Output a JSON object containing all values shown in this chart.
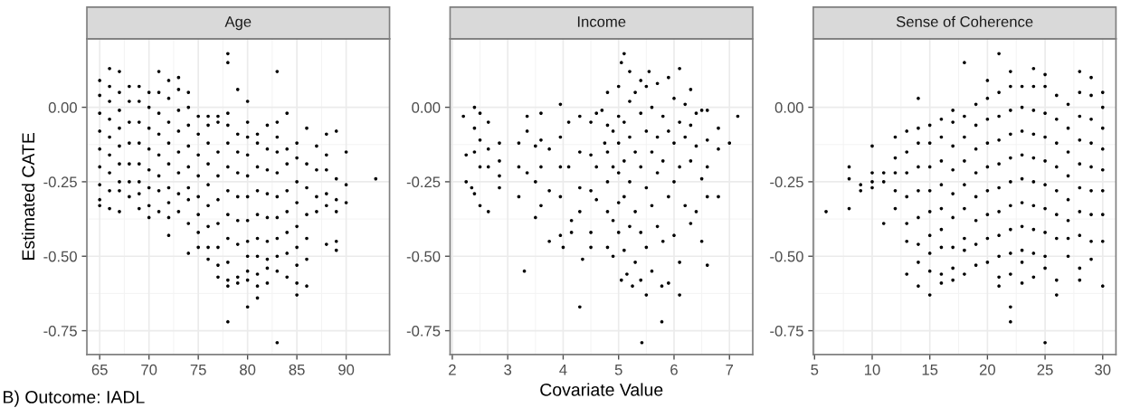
{
  "chart_data": [
    {
      "type": "scatter",
      "title": "Age",
      "ylabel": "Estimated CATE",
      "annotations": [
        "B) Outcome: IADL"
      ],
      "color": "#000000",
      "marker": "circle",
      "grid": true,
      "xlim": [
        63.7,
        94.4
      ],
      "xticks": [
        65,
        70,
        75,
        80,
        85,
        90
      ],
      "ylim": [
        -0.83,
        0.23
      ],
      "yticks": [
        {
          "value": 0,
          "label": "0.00"
        },
        {
          "value": -0.25,
          "label": "-0.25"
        },
        {
          "value": -0.5,
          "label": "-0.50"
        },
        {
          "value": -0.75,
          "label": "-0.75"
        }
      ],
      "x": [
        65,
        65,
        65,
        65,
        65,
        65,
        65,
        65,
        65,
        66,
        66,
        66,
        66,
        66,
        66,
        66,
        66,
        66,
        67,
        67,
        67,
        67,
        67,
        67,
        67,
        67,
        67,
        68,
        68,
        68,
        68,
        68,
        68,
        68,
        69,
        69,
        69,
        69,
        69,
        69,
        69,
        69,
        70,
        70,
        70,
        70,
        70,
        70,
        70,
        70,
        71,
        71,
        71,
        71,
        71,
        71,
        71,
        71,
        72,
        72,
        72,
        72,
        72,
        72,
        72,
        72,
        72,
        73,
        73,
        73,
        73,
        73,
        73,
        73,
        73,
        74,
        74,
        74,
        74,
        74,
        74,
        74,
        74,
        74,
        75,
        75,
        75,
        75,
        75,
        75,
        75,
        75,
        76,
        76,
        76,
        76,
        76,
        76,
        76,
        76,
        76,
        77,
        77,
        77,
        77,
        77,
        77,
        77,
        77,
        77,
        78,
        78,
        78,
        78,
        78,
        78,
        78,
        78,
        78,
        78,
        78,
        78,
        78,
        79,
        79,
        79,
        79,
        79,
        79,
        79,
        79,
        79,
        80,
        80,
        80,
        80,
        80,
        80,
        80,
        80,
        80,
        80,
        80,
        80,
        81,
        81,
        81,
        81,
        81,
        81,
        81,
        81,
        81,
        81,
        82,
        82,
        82,
        82,
        82,
        82,
        82,
        82,
        82,
        83,
        83,
        83,
        83,
        83,
        83,
        83,
        83,
        83,
        83,
        83,
        84,
        84,
        84,
        84,
        84,
        84,
        84,
        84,
        85,
        85,
        85,
        85,
        85,
        85,
        85,
        85,
        85,
        86,
        86,
        86,
        86,
        86,
        86,
        86,
        87,
        87,
        87,
        87,
        88,
        88,
        88,
        88,
        88,
        88,
        89,
        89,
        89,
        89,
        89,
        89,
        90,
        90,
        90,
        93
      ],
      "values": [
        0.09,
        0.04,
        -0.02,
        -0.08,
        -0.14,
        -0.2,
        -0.26,
        -0.31,
        -0.33,
        0.13,
        0.07,
        0.02,
        -0.04,
        -0.1,
        -0.16,
        -0.22,
        -0.28,
        -0.34,
        0.12,
        0.05,
        -0.01,
        -0.07,
        -0.13,
        -0.19,
        -0.25,
        -0.28,
        -0.35,
        0.07,
        0.02,
        -0.05,
        -0.12,
        -0.19,
        -0.25,
        -0.3,
        0.07,
        0.02,
        -0.05,
        -0.12,
        -0.19,
        -0.25,
        -0.29,
        -0.34,
        0.05,
        0.0,
        -0.07,
        -0.14,
        -0.21,
        -0.27,
        -0.33,
        -0.37,
        0.12,
        0.05,
        -0.02,
        -0.09,
        -0.16,
        -0.23,
        -0.28,
        -0.35,
        0.09,
        0.03,
        -0.05,
        -0.12,
        -0.19,
        -0.27,
        -0.32,
        -0.37,
        -0.43,
        0.1,
        0.06,
        -0.01,
        -0.08,
        -0.15,
        -0.22,
        -0.29,
        -0.35,
        0.05,
        0.0,
        -0.06,
        -0.13,
        -0.2,
        -0.27,
        -0.31,
        -0.39,
        -0.49,
        -0.03,
        -0.09,
        -0.16,
        -0.23,
        -0.3,
        -0.36,
        -0.42,
        -0.47,
        -0.03,
        -0.06,
        -0.12,
        -0.19,
        -0.26,
        -0.33,
        -0.4,
        -0.47,
        -0.51,
        -0.03,
        -0.05,
        -0.15,
        -0.23,
        -0.31,
        -0.39,
        -0.47,
        -0.53,
        -0.57,
        0.18,
        0.15,
        -0.02,
        -0.06,
        -0.12,
        -0.2,
        -0.28,
        -0.36,
        -0.44,
        -0.52,
        -0.58,
        -0.6,
        -0.72,
        0.06,
        -0.09,
        -0.15,
        -0.22,
        -0.3,
        -0.38,
        -0.46,
        -0.57,
        -0.59,
        0.02,
        -0.05,
        -0.1,
        -0.16,
        -0.23,
        -0.3,
        -0.38,
        -0.45,
        -0.5,
        -0.55,
        -0.58,
        -0.67,
        -0.09,
        -0.12,
        -0.2,
        -0.28,
        -0.36,
        -0.44,
        -0.5,
        -0.56,
        -0.6,
        -0.64,
        -0.06,
        -0.14,
        -0.21,
        -0.29,
        -0.37,
        -0.45,
        -0.51,
        -0.54,
        -0.59,
        0.12,
        -0.05,
        -0.1,
        -0.15,
        -0.22,
        -0.3,
        -0.37,
        -0.44,
        -0.5,
        -0.55,
        -0.79,
        -0.02,
        -0.14,
        -0.19,
        -0.28,
        -0.35,
        -0.42,
        -0.49,
        -0.57,
        -0.12,
        -0.17,
        -0.25,
        -0.32,
        -0.4,
        -0.47,
        -0.53,
        -0.59,
        -0.63,
        -0.07,
        -0.19,
        -0.27,
        -0.36,
        -0.44,
        -0.51,
        -0.6,
        -0.13,
        -0.21,
        -0.3,
        -0.35,
        -0.09,
        -0.16,
        -0.21,
        -0.29,
        -0.33,
        -0.46,
        -0.08,
        -0.24,
        -0.31,
        -0.35,
        -0.45,
        -0.48,
        -0.15,
        -0.26,
        -0.32,
        -0.24
      ]
    },
    {
      "type": "scatter",
      "title": "Income",
      "xlabel": "Covariate Value",
      "color": "#000000",
      "marker": "circle",
      "grid": true,
      "xlim": [
        1.96,
        7.42
      ],
      "xticks": [
        2,
        3,
        4,
        5,
        6,
        7
      ],
      "ylim": [
        -0.83,
        0.23
      ],
      "yticks": [
        {
          "value": 0,
          "label": "0.00"
        },
        {
          "value": -0.25,
          "label": "-0.25"
        },
        {
          "value": -0.5,
          "label": "-0.50"
        },
        {
          "value": -0.75,
          "label": "-0.75"
        }
      ],
      "x": [
        2.2,
        2.25,
        2.25,
        2.35,
        2.4,
        2.4,
        2.4,
        2.4,
        2.5,
        2.5,
        2.5,
        2.5,
        2.65,
        2.65,
        2.65,
        2.65,
        2.85,
        2.85,
        2.85,
        2.85,
        3.2,
        3.2,
        3.2,
        3.3,
        3.35,
        3.35,
        3.35,
        3.5,
        3.5,
        3.5,
        3.6,
        3.6,
        3.6,
        3.6,
        3.75,
        3.75,
        3.75,
        3.95,
        3.95,
        3.95,
        3.95,
        3.95,
        4.0,
        4.1,
        4.1,
        4.15,
        4.15,
        4.3,
        4.3,
        4.3,
        4.3,
        4.3,
        4.35,
        4.5,
        4.5,
        4.5,
        4.5,
        4.5,
        4.6,
        4.6,
        4.6,
        4.7,
        4.75,
        4.8,
        4.8,
        4.8,
        4.8,
        4.8,
        4.8,
        4.9,
        4.9,
        4.9,
        4.9,
        5.0,
        5.0,
        5.0,
        5.0,
        5.0,
        5.0,
        5.05,
        5.05,
        5.1,
        5.1,
        5.1,
        5.1,
        5.1,
        5.15,
        5.2,
        5.2,
        5.2,
        5.2,
        5.2,
        5.25,
        5.3,
        5.3,
        5.3,
        5.3,
        5.4,
        5.4,
        5.4,
        5.4,
        5.4,
        5.42,
        5.5,
        5.5,
        5.5,
        5.5,
        5.5,
        5.55,
        5.6,
        5.6,
        5.6,
        5.6,
        5.7,
        5.7,
        5.7,
        5.7,
        5.78,
        5.78,
        5.8,
        5.8,
        5.8,
        5.9,
        5.9,
        5.9,
        5.9,
        6.0,
        6.0,
        6.0,
        6.0,
        6.1,
        6.1,
        6.1,
        6.1,
        6.1,
        6.2,
        6.2,
        6.2,
        6.3,
        6.3,
        6.3,
        6.3,
        6.4,
        6.4,
        6.4,
        6.5,
        6.5,
        6.5,
        6.6,
        6.6,
        6.6,
        6.6,
        6.6,
        6.8,
        6.8,
        6.8,
        7.0,
        7.15
      ],
      "values": [
        -0.03,
        -0.16,
        -0.25,
        -0.27,
        0.0,
        -0.07,
        -0.15,
        -0.29,
        -0.02,
        -0.11,
        -0.2,
        -0.33,
        -0.05,
        -0.14,
        -0.2,
        -0.35,
        -0.12,
        -0.18,
        -0.23,
        -0.27,
        -0.12,
        -0.2,
        -0.3,
        -0.55,
        -0.03,
        -0.08,
        -0.22,
        -0.13,
        -0.25,
        -0.37,
        -0.02,
        -0.11,
        -0.2,
        -0.33,
        -0.14,
        -0.28,
        -0.45,
        0.01,
        -0.1,
        -0.2,
        -0.3,
        -0.43,
        -0.47,
        -0.05,
        -0.2,
        -0.38,
        -0.42,
        -0.03,
        -0.15,
        -0.27,
        -0.35,
        -0.67,
        -0.51,
        -0.05,
        -0.16,
        -0.28,
        -0.42,
        -0.47,
        -0.02,
        -0.2,
        -0.31,
        -0.01,
        -0.12,
        0.05,
        -0.06,
        -0.15,
        -0.25,
        -0.35,
        -0.47,
        -0.08,
        -0.2,
        -0.38,
        -0.5,
        0.07,
        -0.03,
        -0.12,
        -0.22,
        -0.32,
        -0.42,
        0.15,
        -0.58,
        0.18,
        -0.05,
        -0.18,
        -0.3,
        -0.48,
        -0.56,
        0.12,
        0.02,
        -0.1,
        -0.25,
        -0.4,
        -0.6,
        0.05,
        -0.15,
        -0.35,
        -0.52,
        0.09,
        -0.02,
        -0.2,
        -0.42,
        -0.58,
        -0.79,
        0.07,
        -0.08,
        -0.27,
        -0.47,
        -0.63,
        0.12,
        0.0,
        -0.15,
        -0.33,
        -0.55,
        0.08,
        -0.1,
        -0.22,
        -0.4,
        -0.6,
        -0.72,
        -0.03,
        -0.18,
        -0.45,
        0.1,
        -0.08,
        -0.3,
        -0.59,
        0.03,
        -0.12,
        -0.25,
        -0.43,
        0.13,
        -0.05,
        -0.2,
        -0.52,
        -0.63,
        0.01,
        -0.1,
        -0.33,
        0.06,
        -0.06,
        -0.18,
        -0.39,
        -0.02,
        -0.13,
        -0.35,
        -0.01,
        -0.24,
        -0.45,
        -0.01,
        -0.11,
        -0.2,
        -0.3,
        -0.53,
        -0.07,
        -0.14,
        -0.3,
        -0.12,
        -0.03
      ]
    },
    {
      "type": "scatter",
      "title": "Sense of Coherence",
      "color": "#000000",
      "marker": "circle",
      "grid": true,
      "xlim": [
        4.89,
        31.15
      ],
      "xticks": [
        5,
        10,
        15,
        20,
        25,
        30
      ],
      "ylim": [
        -0.83,
        0.23
      ],
      "yticks": [
        {
          "value": 0,
          "label": "0.00"
        },
        {
          "value": -0.25,
          "label": "-0.25"
        },
        {
          "value": -0.5,
          "label": "-0.50"
        },
        {
          "value": -0.75,
          "label": "-0.75"
        }
      ],
      "x": [
        6,
        8,
        8,
        8,
        9,
        9,
        10,
        10,
        10,
        10,
        11,
        11,
        11,
        12,
        12,
        12,
        12,
        12,
        13,
        13,
        13,
        13,
        13,
        13,
        13,
        14,
        14,
        14,
        14,
        14,
        14,
        14,
        14,
        14,
        15,
        15,
        15,
        15,
        15,
        15,
        15,
        15,
        15,
        16,
        16,
        16,
        16,
        16,
        16,
        16,
        16,
        16,
        17,
        17,
        17,
        17,
        17,
        17,
        17,
        17,
        17,
        18,
        18,
        18,
        18,
        18,
        18,
        18,
        18,
        18,
        19,
        19,
        19,
        19,
        19,
        19,
        19,
        19,
        20,
        20,
        20,
        20,
        20,
        20,
        20,
        20,
        20,
        21,
        21,
        21,
        21,
        21,
        21,
        21,
        21,
        21,
        21,
        21,
        22,
        22,
        22,
        22,
        22,
        22,
        22,
        22,
        22,
        22,
        22,
        22,
        23,
        23,
        23,
        23,
        23,
        23,
        23,
        23,
        23,
        23,
        24,
        24,
        24,
        24,
        24,
        24,
        24,
        24,
        24,
        24,
        25,
        25,
        25,
        25,
        25,
        25,
        25,
        25,
        25,
        25,
        25,
        26,
        26,
        26,
        26,
        26,
        26,
        26,
        26,
        26,
        27,
        27,
        27,
        27,
        27,
        27,
        27,
        27,
        28,
        28,
        28,
        28,
        28,
        28,
        28,
        28,
        28,
        28,
        29,
        29,
        29,
        29,
        29,
        29,
        29,
        29,
        29,
        30,
        30,
        30,
        30,
        30,
        30,
        30,
        30,
        30
      ],
      "values": [
        -0.35,
        -0.2,
        -0.24,
        -0.34,
        -0.26,
        -0.28,
        -0.13,
        -0.22,
        -0.25,
        -0.27,
        -0.22,
        -0.25,
        -0.39,
        -0.1,
        -0.17,
        -0.22,
        -0.28,
        -0.34,
        -0.08,
        -0.15,
        -0.22,
        -0.3,
        -0.39,
        -0.45,
        -0.56,
        0.03,
        -0.07,
        -0.12,
        -0.2,
        -0.28,
        -0.37,
        -0.46,
        -0.52,
        -0.6,
        -0.06,
        -0.12,
        -0.2,
        -0.28,
        -0.35,
        -0.43,
        -0.49,
        -0.55,
        -0.63,
        -0.04,
        -0.1,
        -0.18,
        -0.26,
        -0.34,
        -0.41,
        -0.47,
        -0.56,
        -0.59,
        -0.01,
        -0.05,
        -0.13,
        -0.21,
        -0.29,
        -0.37,
        -0.47,
        -0.54,
        -0.58,
        0.15,
        -0.03,
        -0.1,
        -0.18,
        -0.26,
        -0.34,
        -0.44,
        -0.48,
        -0.56,
        0.01,
        -0.06,
        -0.14,
        -0.22,
        -0.3,
        -0.38,
        -0.46,
        -0.53,
        0.09,
        0.03,
        -0.04,
        -0.12,
        -0.2,
        -0.28,
        -0.36,
        -0.44,
        -0.52,
        0.18,
        0.05,
        -0.03,
        -0.11,
        -0.19,
        -0.27,
        -0.35,
        -0.43,
        -0.5,
        -0.57,
        -0.6,
        0.12,
        0.07,
        -0.01,
        -0.09,
        -0.17,
        -0.25,
        -0.33,
        -0.41,
        -0.49,
        -0.56,
        -0.67,
        -0.72,
        0.07,
        0.0,
        -0.08,
        -0.16,
        -0.24,
        -0.32,
        -0.4,
        -0.48,
        -0.52,
        -0.59,
        0.13,
        0.07,
        -0.01,
        -0.09,
        -0.17,
        -0.25,
        -0.33,
        -0.41,
        -0.49,
        -0.57,
        0.11,
        0.07,
        -0.02,
        -0.1,
        -0.18,
        -0.26,
        -0.34,
        -0.42,
        -0.5,
        -0.54,
        -0.79,
        0.04,
        -0.04,
        -0.12,
        -0.2,
        -0.28,
        -0.36,
        -0.44,
        -0.58,
        -0.63,
        0.01,
        -0.07,
        -0.15,
        -0.23,
        -0.31,
        -0.38,
        -0.44,
        -0.5,
        0.12,
        0.05,
        -0.03,
        -0.11,
        -0.19,
        -0.27,
        -0.35,
        -0.43,
        -0.54,
        -0.58,
        0.1,
        0.04,
        -0.04,
        -0.12,
        -0.2,
        -0.28,
        -0.36,
        -0.45,
        -0.51,
        0.05,
        0.0,
        -0.07,
        -0.14,
        -0.21,
        -0.28,
        -0.36,
        -0.45,
        -0.6
      ]
    }
  ]
}
